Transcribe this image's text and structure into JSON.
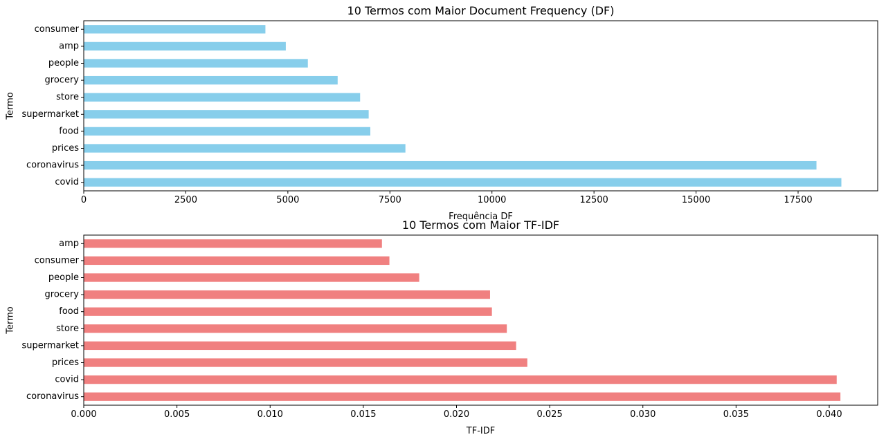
{
  "chart_data": [
    {
      "type": "bar",
      "orientation": "horizontal",
      "title": "10 Termos com Maior Document Frequency (DF)",
      "xlabel": "Frequência DF",
      "ylabel": "Termo",
      "categories": [
        "consumer",
        "amp",
        "people",
        "grocery",
        "store",
        "supermarket",
        "food",
        "prices",
        "coronavirus",
        "covid"
      ],
      "values": [
        4450,
        4950,
        5490,
        6220,
        6770,
        6980,
        7020,
        7880,
        17950,
        18560
      ],
      "xlim": [
        0,
        19450
      ],
      "xticks": [
        0,
        2500,
        5000,
        7500,
        10000,
        12500,
        15000,
        17500
      ],
      "xtick_labels": [
        "0",
        "2500",
        "5000",
        "7500",
        "10000",
        "12500",
        "15000",
        "17500"
      ],
      "color": "#87ceeb",
      "grid": false,
      "legend": false
    },
    {
      "type": "bar",
      "orientation": "horizontal",
      "title": "10 Termos com Maior TF-IDF",
      "xlabel": "TF-IDF",
      "ylabel": "Termo",
      "categories": [
        "amp",
        "consumer",
        "people",
        "grocery",
        "food",
        "store",
        "supermarket",
        "prices",
        "covid",
        "coronavirus"
      ],
      "values": [
        0.016,
        0.0164,
        0.018,
        0.0218,
        0.0219,
        0.0227,
        0.0232,
        0.0238,
        0.0404,
        0.0406
      ],
      "xlim": [
        0,
        0.0426
      ],
      "xticks": [
        0,
        0.005,
        0.01,
        0.015,
        0.02,
        0.025,
        0.03,
        0.035,
        0.04
      ],
      "xtick_labels": [
        "0.000",
        "0.005",
        "0.010",
        "0.015",
        "0.020",
        "0.025",
        "0.030",
        "0.035",
        "0.040"
      ],
      "color": "#f08080",
      "grid": false,
      "legend": false
    }
  ]
}
